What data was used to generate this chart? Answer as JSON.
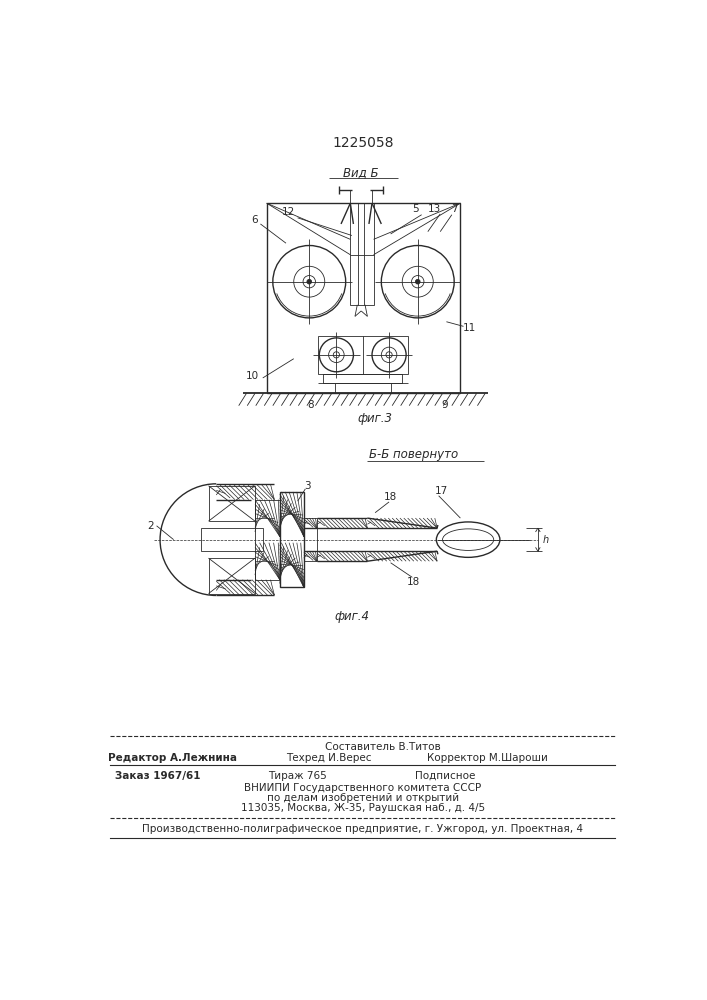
{
  "patent_number": "1225058",
  "fig3_label": "фиг.3",
  "fig4_label": "фиг.4",
  "vid_b_label": "Вид Б",
  "bb_label": "Б-Б повернуто",
  "footer_line1": "Составитель В.Титов",
  "footer_line2_left": "Редактор А.Лежнина",
  "footer_line2_mid": "Техред И.Верес",
  "footer_line2_right": "Корректор М.Шароши",
  "footer_line3_left": "Заказ 1967/61",
  "footer_line3_mid": "Тираж 765",
  "footer_line3_right": "Подписное",
  "footer_line4": "ВНИИПИ Государственного комитета СССР",
  "footer_line5": "по делам изобретений и открытий",
  "footer_line6": "113035, Москва, Ж-35, Раушская наб., д. 4/5",
  "footer_line7": "Производственно-полиграфическое предприятие, г. Ужгород, ул. Проектная, 4",
  "bg_color": "#ffffff",
  "line_color": "#2a2a2a"
}
